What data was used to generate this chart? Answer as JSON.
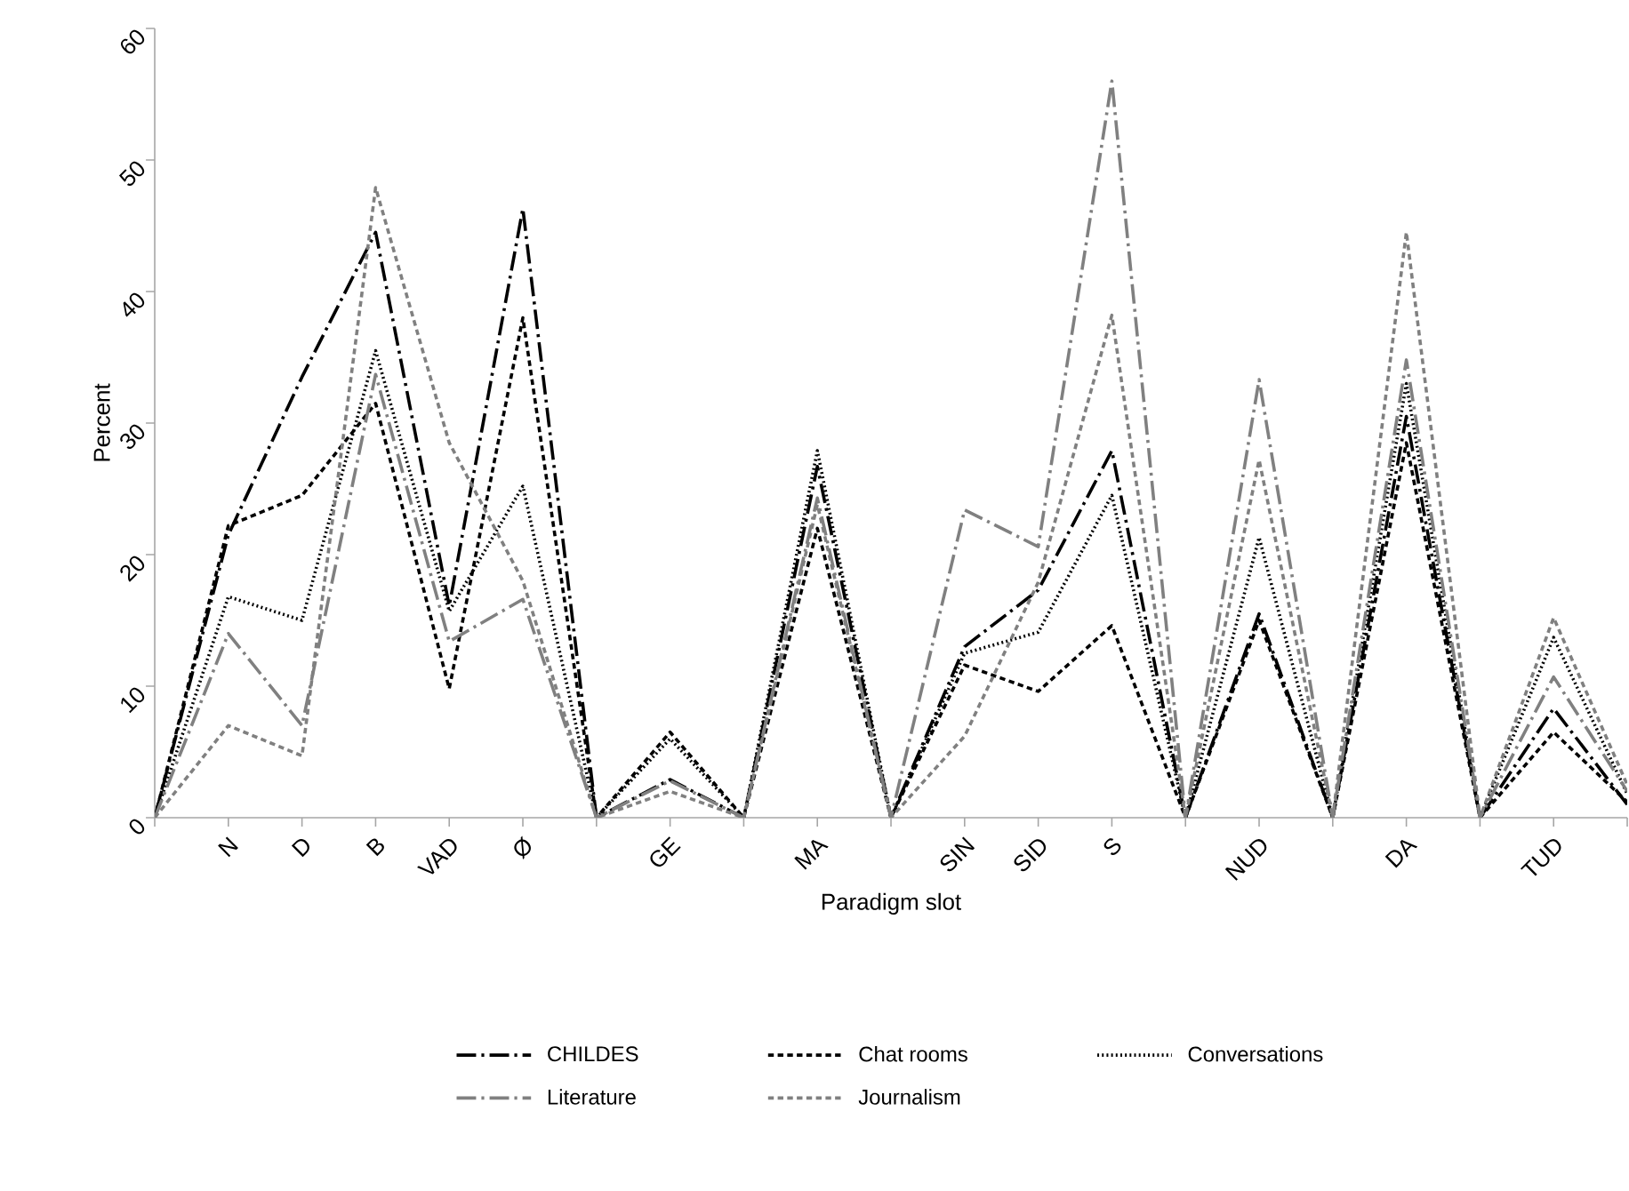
{
  "chart_data": {
    "type": "line",
    "xlabel": "Paradigm slot",
    "ylabel": "Percent",
    "categories": [
      null,
      "N",
      "D",
      "B",
      "VAD",
      "Ø",
      null,
      "GE",
      null,
      "MA",
      null,
      "SIN",
      "SID",
      "S",
      null,
      "NUD",
      null,
      "DA",
      null,
      "TUD",
      null
    ],
    "ylim": [
      0,
      60
    ],
    "yticks": [
      0,
      10,
      20,
      30,
      40,
      50,
      60
    ],
    "legend": "bottom",
    "series": [
      {
        "name": "CHILDES",
        "color": "#000000",
        "line_style": "dashdot",
        "values": [
          0,
          21.5,
          33.5,
          44.5,
          16.1,
          46.3,
          0,
          2.9,
          0,
          26.7,
          0,
          13.0,
          17.3,
          27.9,
          0,
          15.5,
          0,
          30.5,
          0,
          8.3,
          1.0
        ]
      },
      {
        "name": "Chat rooms",
        "color": "#000000",
        "line_style": "dashed",
        "values": [
          0,
          22.2,
          24.5,
          31.5,
          9.8,
          38.0,
          0,
          6.5,
          0,
          22.0,
          0,
          11.6,
          9.6,
          14.6,
          0,
          15.0,
          0,
          28.5,
          0,
          6.5,
          1.2
        ]
      },
      {
        "name": "Conversations",
        "color": "#000000",
        "line_style": "dotted",
        "values": [
          0,
          16.8,
          15.0,
          35.5,
          15.7,
          25.2,
          0,
          6.0,
          0,
          27.9,
          0,
          12.5,
          14.1,
          24.5,
          0,
          21.3,
          0,
          33.0,
          0,
          13.7,
          1.8
        ]
      },
      {
        "name": "Literature",
        "color": "#808080",
        "line_style": "dashdot",
        "values": [
          0,
          14.0,
          7.0,
          33.7,
          13.4,
          16.6,
          0,
          2.8,
          0,
          24.3,
          0,
          23.4,
          20.6,
          56.0,
          0,
          33.3,
          0,
          34.8,
          0,
          10.7,
          2.0
        ]
      },
      {
        "name": "Journalism",
        "color": "#808080",
        "line_style": "dashed",
        "values": [
          0,
          7.0,
          4.7,
          47.9,
          28.5,
          18.0,
          0,
          2.0,
          0,
          23.8,
          0,
          6.2,
          17.9,
          38.2,
          0,
          27.2,
          0,
          44.5,
          0,
          15.2,
          2.5
        ]
      }
    ]
  }
}
